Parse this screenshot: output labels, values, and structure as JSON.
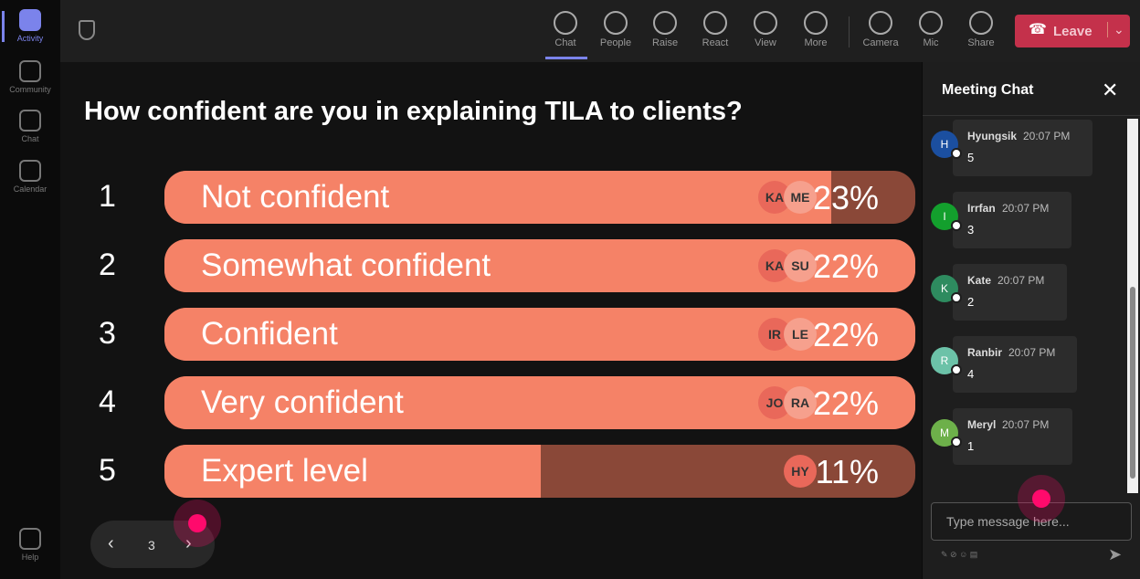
{
  "rail": [
    "Activity",
    "Community",
    "Chat",
    "Calendar",
    "Help"
  ],
  "toolbar": {
    "items": [
      "Chat",
      "People",
      "Raise",
      "React",
      "View",
      "More",
      "Camera",
      "Mic",
      "Share"
    ],
    "leave": "Leave"
  },
  "poll": {
    "question": "How confident are you in explaining TILA to clients?",
    "options": [
      {
        "number": 1,
        "label": "Not confident",
        "voters": [
          "KA",
          "ME"
        ],
        "percent": "23%"
      },
      {
        "number": 2,
        "label": "Somewhat confident",
        "voters": [
          "KA",
          "SU"
        ],
        "percent": "22%"
      },
      {
        "number": 3,
        "label": "Confident",
        "voters": [
          "IR",
          "LE"
        ],
        "percent": "22%"
      },
      {
        "number": 4,
        "label": "Very confident",
        "voters": [
          "JO",
          "RA"
        ],
        "percent": "22%"
      },
      {
        "number": 5,
        "label": "Expert level",
        "voters": [
          "HY"
        ],
        "percent": "11%"
      }
    ]
  },
  "pager": {
    "page": 3
  },
  "chat": {
    "title": "Meeting Chat",
    "messages": [
      {
        "initial": "H",
        "author": "Hyungsik",
        "time": "20:07 PM",
        "text": "5"
      },
      {
        "initial": "I",
        "author": "Irrfan",
        "time": "20:07 PM",
        "text": "3"
      },
      {
        "initial": "K",
        "author": "Kate",
        "time": "20:07 PM",
        "text": "2"
      },
      {
        "initial": "R",
        "author": "Ranbir",
        "time": "20:07 PM",
        "text": "4"
      },
      {
        "initial": "M",
        "author": "Meryl",
        "time": "20:07 PM",
        "text": "1"
      }
    ],
    "placeholder": "Type message here..."
  }
}
